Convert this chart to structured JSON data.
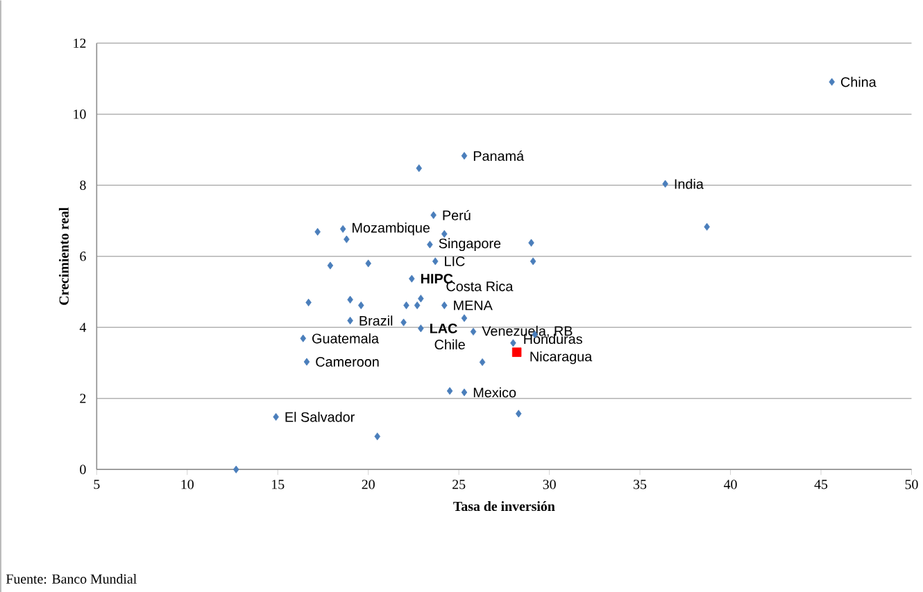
{
  "chart_data": {
    "type": "scatter",
    "xlabel": "Tasa de inversión",
    "ylabel": "Crecimiento real",
    "xlim": [
      5,
      50
    ],
    "xticks": [
      5,
      10,
      15,
      20,
      25,
      30,
      35,
      40,
      45,
      50
    ],
    "ylim": [
      0,
      12
    ],
    "yticks": [
      0,
      2,
      4,
      6,
      8,
      10,
      12
    ],
    "grid": "y",
    "marker": "diamond",
    "series": [
      {
        "color": "#4a7ebb",
        "x": [
          12.7,
          14.9,
          20.5,
          16.6,
          16.4,
          16.7,
          19.0,
          19.0,
          19.6,
          17.2,
          18.6,
          18.8,
          17.9,
          20.0,
          25.3,
          22.8,
          23.6,
          24.2,
          23.4,
          23.7,
          29.0,
          29.1,
          36.4,
          38.7,
          45.6,
          22.4,
          22.1,
          22.7,
          22.9,
          24.2,
          25.3,
          22.9,
          25.8,
          29.2,
          21.95,
          28.0,
          26.3,
          24.5,
          25.3,
          28.3
        ],
        "values": [
          0.0,
          1.48,
          0.93,
          3.03,
          3.69,
          4.7,
          4.19,
          4.78,
          4.62,
          6.69,
          6.77,
          6.48,
          5.74,
          5.8,
          8.83,
          8.48,
          7.16,
          6.63,
          6.33,
          5.86,
          6.38,
          5.86,
          8.04,
          6.83,
          10.91,
          5.37,
          4.62,
          4.62,
          4.81,
          4.62,
          4.26,
          3.97,
          3.88,
          3.8,
          4.14,
          3.56,
          3.02,
          2.21,
          2.17,
          1.57
        ]
      },
      {
        "color": "#ff0000",
        "marker": "square",
        "x": [
          28.2
        ],
        "values": [
          3.3
        ]
      }
    ],
    "annotations": [
      {
        "text": "China",
        "x": 45.6,
        "y": 10.91
      },
      {
        "text": "India",
        "x": 36.4,
        "y": 8.04
      },
      {
        "text": "Panamá",
        "x": 25.3,
        "y": 8.83
      },
      {
        "text": "Perú",
        "x": 23.6,
        "y": 7.16
      },
      {
        "text": "Mozambique",
        "x": 18.6,
        "y": 6.77
      },
      {
        "text": "Singapore",
        "x": 23.4,
        "y": 6.33
      },
      {
        "text": "LIC",
        "x": 23.7,
        "y": 5.86
      },
      {
        "text": "**HIPC**",
        "x": 22.4,
        "y": 5.37
      },
      {
        "text": "Costa Rica",
        "x": 22.9,
        "y": 4.81
      },
      {
        "text": "MENA",
        "x": 24.2,
        "y": 4.62
      },
      {
        "text": "Brazil",
        "x": 19.0,
        "y": 4.19
      },
      {
        "text": "**LAC**",
        "x": 22.9,
        "y": 3.97
      },
      {
        "text": "Venezuela, RB",
        "x": 25.8,
        "y": 3.88
      },
      {
        "text": "Chile",
        "x": 21.95,
        "y": 4.14
      },
      {
        "text": "Honduras",
        "x": 28.0,
        "y": 3.56
      },
      {
        "text": "Nicaragua",
        "x": 28.2,
        "y": 3.3
      },
      {
        "text": "Guatemala",
        "x": 16.4,
        "y": 3.69
      },
      {
        "text": "Cameroon",
        "x": 16.6,
        "y": 3.03
      },
      {
        "text": "Mexico",
        "x": 25.3,
        "y": 2.17
      },
      {
        "text": "El Salvador",
        "x": 14.9,
        "y": 1.48
      },
      "Fuente: Banco  Mundial"
    ]
  }
}
